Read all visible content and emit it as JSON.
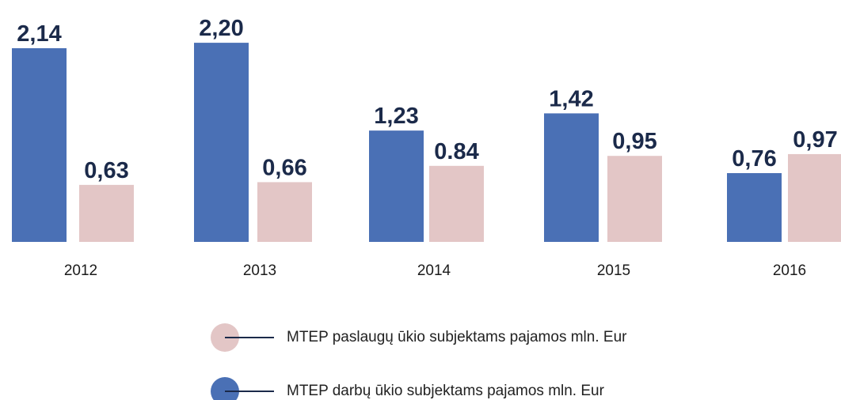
{
  "chart_data": {
    "type": "bar",
    "categories": [
      "2012",
      "2013",
      "2014",
      "2015",
      "2016"
    ],
    "series": [
      {
        "name": "MTEP darbų ūkio subjektams pajamos mln. Eur",
        "color": "#4a70b5",
        "values": [
          2.14,
          2.2,
          1.23,
          1.42,
          0.76
        ],
        "value_labels": [
          "2,14",
          "2,20",
          "1,23",
          "1,42",
          "0,76"
        ]
      },
      {
        "name": "MTEP paslaugų ūkio subjektams pajamos mln. Eur",
        "color": "#e3c6c6",
        "values": [
          0.63,
          0.66,
          0.84,
          0.95,
          0.97
        ],
        "value_labels": [
          "0,63",
          "0,66",
          "0.84",
          "0,95",
          "0,97"
        ]
      }
    ]
  }
}
